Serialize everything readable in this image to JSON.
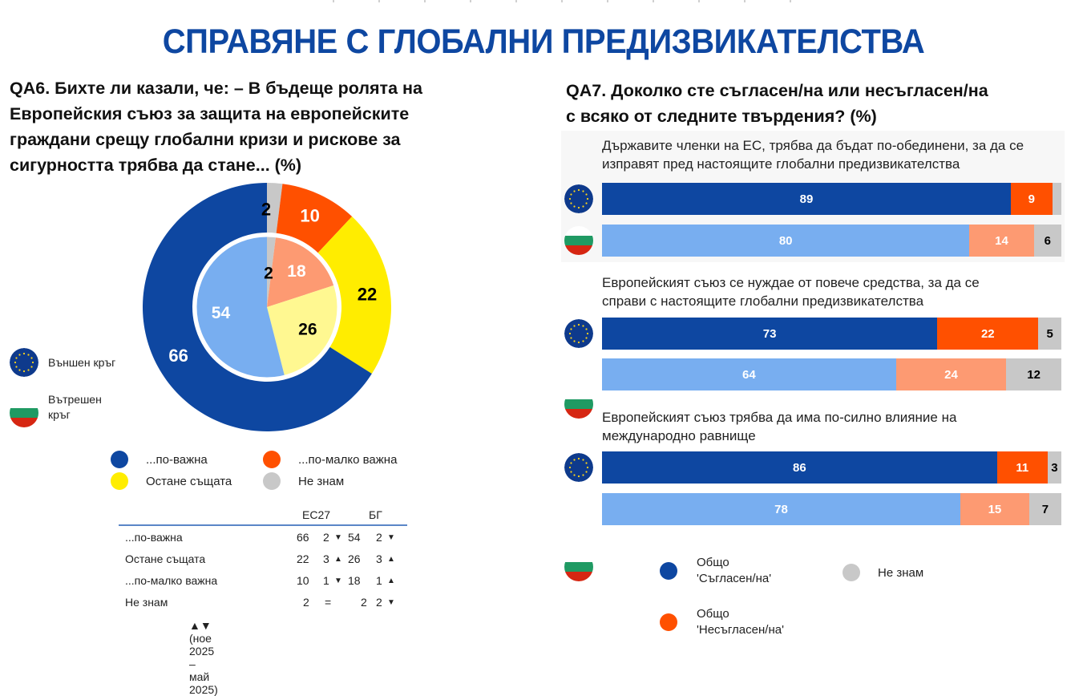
{
  "page": {
    "title": "СПРАВЯНЕ С ГЛОБАЛНИ ПРЕДИЗВИКАТЕЛСТВА"
  },
  "left_panel": {
    "question": "QA6. Бихте ли казали, че: – В бъдеще ролята на Европейския съюз за защита на европейските граждани срещу глобални кризи и рискове за сигурността трябва да стане... (%)",
    "question_lines": [
      "QA6. Бихте ли казали, че: – В бъдеще ролята на",
      "Европейския съюз за защита на европейските",
      "граждани срещу глобални кризи и рискове за",
      "сигурността трябва да стане... (%)"
    ],
    "ring_legend": {
      "outer": "Външен кръг",
      "inner_line1": "Вътрешен",
      "inner_line2": "кръг"
    },
    "legend": [
      {
        "label": "...по-важна",
        "color": "#0e47a1"
      },
      {
        "label": "...по-малко важна",
        "color": "#ff5000"
      },
      {
        "label": "Остане същата",
        "color": "#ffed00"
      },
      {
        "label": "Не знам",
        "color": "#c8c8c8"
      }
    ],
    "table": {
      "headers": {
        "eu": "ЕС27",
        "bg": "БГ"
      },
      "rows": [
        {
          "label": "...по-важна",
          "eu": "66",
          "eu_change": "2",
          "eu_dir": "▼",
          "bg": "54",
          "bg_change": "2",
          "bg_dir": "▼"
        },
        {
          "label": "Остане същата",
          "eu": "22",
          "eu_change": "3",
          "eu_dir": "▲",
          "bg": "26",
          "bg_change": "3",
          "bg_dir": "▲"
        },
        {
          "label": "...по-малко важна",
          "eu": "10",
          "eu_change": "1",
          "eu_dir": "▼",
          "bg": "18",
          "bg_change": "1",
          "bg_dir": "▲"
        },
        {
          "label": "Не знам",
          "eu": "2",
          "eu_change": "=",
          "eu_dir": "",
          "bg": "2",
          "bg_change": "2",
          "bg_dir": "▼"
        }
      ],
      "footnote": "▲▼ (ное 2025 – май 2025)"
    }
  },
  "right_panel": {
    "question_lines": [
      "QA7. Доколко сте съгласен/на или несъгласен/на",
      "с всяко от следните твърдения? (%)"
    ],
    "statements": [
      {
        "line1": "Държавите членки на ЕС, трябва да бъдат по-обединени, за да се",
        "line2": "изправят пред настоящите глобални предизвикателства",
        "eu": {
          "agree": 89,
          "disagree": 9,
          "dk": 2,
          "agree_label": "89",
          "disagree_label": "9",
          "dk_label": ""
        },
        "bg": {
          "agree": 80,
          "disagree": 14,
          "dk": 6,
          "agree_label": "80",
          "disagree_label": "14",
          "dk_label": "6"
        }
      },
      {
        "line1": "Европейският съюз се нуждае от повече средства, за да се",
        "line2": "справи с настоящите глобални предизвикателства",
        "eu": {
          "agree": 73,
          "disagree": 22,
          "dk": 5,
          "agree_label": "73",
          "disagree_label": "22",
          "dk_label": "5"
        },
        "bg": {
          "agree": 64,
          "disagree": 24,
          "dk": 12,
          "agree_label": "64",
          "disagree_label": "24",
          "dk_label": "12"
        }
      },
      {
        "line1": "Европейският съюз трябва да има по-силно влияние на",
        "line2": "международно равнище",
        "eu": {
          "agree": 86,
          "disagree": 11,
          "dk": 3,
          "agree_label": "86",
          "disagree_label": "11",
          "dk_label": "3"
        },
        "bg": {
          "agree": 78,
          "disagree": 15,
          "dk": 7,
          "agree_label": "78",
          "disagree_label": "15",
          "dk_label": "7"
        }
      }
    ],
    "legend": {
      "agree_line1": "Общо",
      "agree_line2": "'Съгласен/на'",
      "disagree_line1": "Общо",
      "disagree_line2": "'Несъгласен/на'",
      "dk": "Не знам"
    }
  },
  "colors": {
    "title_blue": "#0e47a1",
    "eu_agree": "#0e47a1",
    "eu_disagree": "#ff5000",
    "bg_agree": "#78aef0",
    "bg_disagree": "#fd9a72",
    "dk": "#c8c8c8",
    "same_outer": "#ffed00",
    "same_inner": "#fff891"
  },
  "chart_data": [
    {
      "type": "pie",
      "title": "QA6. Бихте ли казали, че: – В бъдеще ролята на Европейския съюз за защита на европейските граждани срещу глобални кризи и рискове за сигурността трябва да стане... (%)",
      "subtype": "nested donut",
      "categories": [
        "...по-важна",
        "Остане същата",
        "...по-малко важна",
        "Не знам"
      ],
      "series": [
        {
          "name": "Външен кръг (ЕС27)",
          "values": [
            66,
            22,
            10,
            2
          ]
        },
        {
          "name": "Вътрешен кръг (БГ)",
          "values": [
            54,
            26,
            18,
            2
          ]
        }
      ],
      "legend": [
        "...по-важна",
        "...по-малко важна",
        "Остане същата",
        "Не знам"
      ]
    },
    {
      "type": "table",
      "title": "Промяна (ное 2025 – май 2025)",
      "columns": [
        "",
        "ЕС27",
        "Δ ЕС27",
        "БГ",
        "Δ БГ"
      ],
      "rows": [
        [
          "...по-важна",
          66,
          "2 ▼",
          54,
          "2 ▼"
        ],
        [
          "Остане същата",
          22,
          "3 ▲",
          26,
          "3 ▲"
        ],
        [
          "...по-малко важна",
          10,
          "1 ▼",
          18,
          "1 ▲"
        ],
        [
          "Не знам",
          2,
          "=",
          2,
          "2 ▼"
        ]
      ]
    },
    {
      "type": "bar",
      "orientation": "horizontal",
      "stacked": true,
      "title": "QA7. Доколко сте съгласен/на или несъгласен/на с всяко от следните твърдения? (%)",
      "categories": [
        "Държавите членки на ЕС, трябва да бъдат по-обединени, за да се изправят пред настоящите глобални предизвикателства — ЕС27",
        "Държавите членки на ЕС, трябва да бъдат по-обединени, за да се изправят пред настоящите глобални предизвикателства — БГ",
        "Европейският съюз се нуждае от повече средства, за да се справи с настоящите глобални предизвикателства — ЕС27",
        "Европейският съюз се нуждае от повече средства, за да се справи с настоящите глобални предизвикателства — БГ",
        "Европейският съюз трябва да има по-силно влияние на международно равнище — ЕС27",
        "Европейският съюз трябва да има по-силно влияние на международно равнище — БГ"
      ],
      "series": [
        {
          "name": "Общо 'Съгласен/на'",
          "values": [
            89,
            80,
            73,
            64,
            86,
            78
          ]
        },
        {
          "name": "Общо 'Несъгласен/на'",
          "values": [
            9,
            14,
            22,
            24,
            11,
            15
          ]
        },
        {
          "name": "Не знам",
          "values": [
            2,
            6,
            5,
            12,
            3,
            7
          ]
        }
      ],
      "xlim": [
        0,
        100
      ],
      "legend_position": "bottom"
    }
  ]
}
